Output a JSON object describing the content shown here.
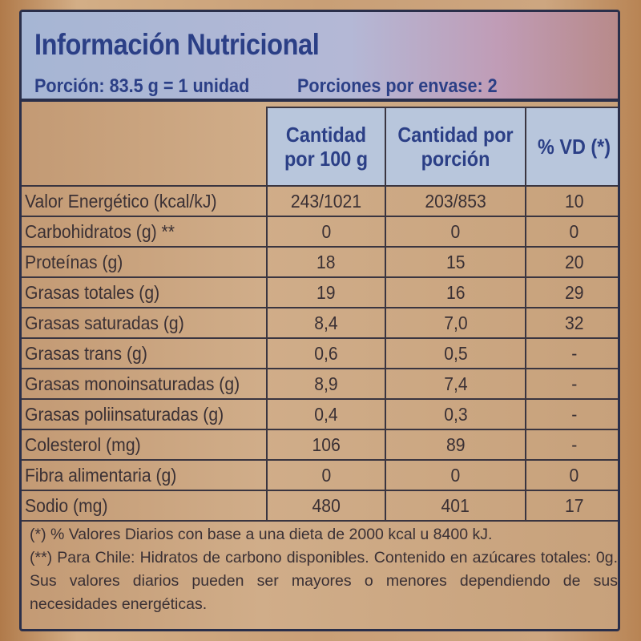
{
  "title": "Información Nutricional",
  "portion": "Porción: 83.5 g = 1 unidad",
  "portions_per_pack": "Porciones por envase: 2",
  "columns": [
    "Cantidad por 100 g",
    "Cantidad por porción",
    "% VD (*)"
  ],
  "rows": [
    {
      "label": "Valor Energético (kcal/kJ)",
      "per100": "243/1021",
      "perPortion": "203/853",
      "vd": "10"
    },
    {
      "label": "Carbohidratos (g) **",
      "per100": "0",
      "perPortion": "0",
      "vd": "0"
    },
    {
      "label": "Proteínas (g)",
      "per100": "18",
      "perPortion": "15",
      "vd": "20"
    },
    {
      "label": "Grasas totales (g)",
      "per100": "19",
      "perPortion": "16",
      "vd": "29"
    },
    {
      "label": "Grasas saturadas (g)",
      "per100": "8,4",
      "perPortion": "7,0",
      "vd": "32"
    },
    {
      "label": "Grasas trans (g)",
      "per100": "0,6",
      "perPortion": "0,5",
      "vd": "-"
    },
    {
      "label": "Grasas monoinsaturadas (g)",
      "per100": "8,9",
      "perPortion": "7,4",
      "vd": "-"
    },
    {
      "label": "Grasas poliinsaturadas (g)",
      "per100": "0,4",
      "perPortion": "0,3",
      "vd": "-"
    },
    {
      "label": "Colesterol (mg)",
      "per100": "106",
      "perPortion": "89",
      "vd": "-"
    },
    {
      "label": "Fibra alimentaria (g)",
      "per100": "0",
      "perPortion": "0",
      "vd": "0"
    },
    {
      "label": "Sodio (mg)",
      "per100": "480",
      "perPortion": "401",
      "vd": "17"
    }
  ],
  "footnotes": [
    "(*) % Valores Diarios con base a una dieta de 2000 kcal u 8400 kJ.",
    "(**) Para Chile: Hidratos de carbono disponibles. Contenido en azúcares totales: 0g. Sus valores diarios pueden ser mayores o menores dependiendo de sus necesidades energéticas."
  ],
  "colors": {
    "title": "#2b3f86",
    "header_band": "#b4b8d6",
    "column_header": "#b8c6dc",
    "text": "#3a3034",
    "border": "#2a2f4a"
  }
}
